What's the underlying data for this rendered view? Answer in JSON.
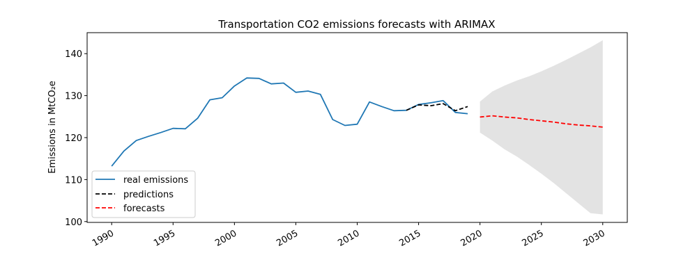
{
  "chart_data": {
    "type": "line",
    "title": "Transportation CO2 emissions forecasts with ARIMAX",
    "xlabel": "",
    "ylabel": "Emissions in MtCO₂e",
    "xlim": [
      1988,
      2032
    ],
    "ylim": [
      99.8,
      145.0
    ],
    "xticks": [
      1990,
      1995,
      2000,
      2005,
      2010,
      2015,
      2020,
      2025,
      2030
    ],
    "yticks": [
      100,
      110,
      120,
      130,
      140
    ],
    "grid": false,
    "legend_position": "lower-left",
    "colors": {
      "real": "#1f77b4",
      "predictions": "#000000",
      "forecasts": "#ff0000",
      "band": "#d9d9d9"
    },
    "series": [
      {
        "name": "real emissions",
        "style": "solid",
        "x": [
          1990,
          1991,
          1992,
          1993,
          1994,
          1995,
          1996,
          1997,
          1998,
          1999,
          2000,
          2001,
          2002,
          2003,
          2004,
          2005,
          2006,
          2007,
          2008,
          2009,
          2010,
          2011,
          2012,
          2013,
          2014,
          2015,
          2016,
          2017,
          2018,
          2019
        ],
        "y": [
          113.2,
          116.8,
          119.3,
          120.3,
          121.2,
          122.2,
          122.1,
          124.6,
          129.0,
          129.5,
          132.3,
          134.2,
          134.1,
          132.8,
          133.0,
          130.8,
          131.1,
          130.3,
          124.3,
          122.9,
          123.2,
          128.5,
          127.4,
          126.4,
          126.5,
          127.9,
          128.3,
          128.8,
          126.0,
          125.7
        ]
      },
      {
        "name": "predictions",
        "style": "dashed",
        "x": [
          2014,
          2015,
          2016,
          2017,
          2018,
          2019
        ],
        "y": [
          126.5,
          127.8,
          127.6,
          128.1,
          126.4,
          127.4
        ]
      },
      {
        "name": "forecasts",
        "style": "dashed",
        "x": [
          2020,
          2021,
          2022,
          2023,
          2024,
          2025,
          2026,
          2027,
          2028,
          2029,
          2030
        ],
        "y": [
          124.9,
          125.2,
          124.9,
          124.7,
          124.3,
          124.0,
          123.7,
          123.3,
          123.0,
          122.8,
          122.5
        ]
      }
    ],
    "confidence_band": {
      "x": [
        2020,
        2021,
        2022,
        2023,
        2024,
        2025,
        2026,
        2027,
        2028,
        2029,
        2030
      ],
      "upper": [
        128.6,
        131.0,
        132.4,
        133.6,
        134.6,
        135.8,
        137.1,
        138.5,
        140.0,
        141.5,
        143.2
      ],
      "lower": [
        121.2,
        119.3,
        117.2,
        115.5,
        113.5,
        111.4,
        109.2,
        106.8,
        104.4,
        102.0,
        101.7
      ]
    }
  }
}
